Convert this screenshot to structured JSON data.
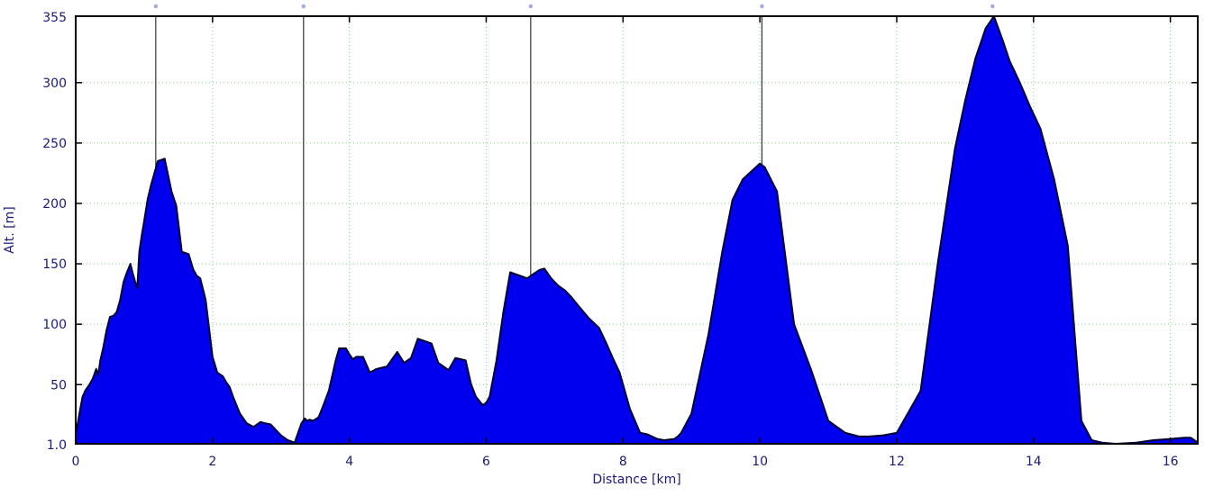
{
  "chart_data": {
    "type": "area",
    "title": "",
    "xlabel": "Distance [km]",
    "ylabel": "Alt. [m]",
    "xlim": [
      0,
      16.4
    ],
    "ylim": [
      1.0,
      355
    ],
    "x_ticks": [
      0,
      2,
      4,
      6,
      8,
      10,
      12,
      14,
      16
    ],
    "x_tick_labels": [
      "0",
      "2",
      "4",
      "6",
      "8",
      "10",
      "12",
      "14",
      "16"
    ],
    "y_ticks": [
      1.0,
      50,
      100,
      150,
      200,
      250,
      300,
      355
    ],
    "y_tick_labels": [
      "1.0",
      "50",
      "100",
      "150",
      "200",
      "250",
      "300",
      "355"
    ],
    "grid": true,
    "legend": "none",
    "fill_color": "#0000ee",
    "line_color": "#000033",
    "grid_color": "#7fd37f",
    "marker_color": "#9da8ef",
    "waypoint_markers_km": [
      1.17,
      3.33,
      6.65,
      10.03,
      13.4
    ],
    "series": [
      {
        "x": [
          0,
          0.03,
          0.06,
          0.1,
          0.14,
          0.2,
          0.25,
          0.3,
          0.33,
          0.36,
          0.4,
          0.45,
          0.5,
          0.55,
          0.6,
          0.65,
          0.7,
          0.75,
          0.8,
          0.83,
          0.87,
          0.9,
          0.93,
          0.97,
          1.0,
          1.05,
          1.1,
          1.15,
          1.2,
          1.3,
          1.4,
          1.47,
          1.55,
          1.65,
          1.72,
          1.77,
          1.82,
          1.9,
          2.0,
          2.07,
          2.15,
          2.2,
          2.25,
          2.3,
          2.35,
          2.4,
          2.5,
          2.6,
          2.7,
          2.77,
          2.85,
          3.0,
          3.05,
          3.1,
          3.2,
          3.25,
          3.3,
          3.35,
          3.38,
          3.42,
          3.47,
          3.55,
          3.6,
          3.7,
          3.8,
          3.85,
          3.95,
          4.0,
          4.05,
          4.1,
          4.2,
          4.3,
          4.4,
          4.55,
          4.7,
          4.8,
          4.9,
          5.0,
          5.1,
          5.2,
          5.3,
          5.45,
          5.55,
          5.7,
          5.78,
          5.85,
          5.95,
          6.0,
          6.05,
          6.15,
          6.25,
          6.35,
          6.5,
          6.6,
          6.7,
          6.78,
          6.85,
          6.95,
          7.05,
          7.15,
          7.25,
          7.35,
          7.5,
          7.65,
          7.75,
          7.85,
          7.95,
          8.1,
          8.25,
          8.35,
          8.5,
          8.6,
          8.75,
          8.8,
          8.85,
          9.0,
          9.25,
          9.45,
          9.6,
          9.75,
          10.0,
          10.07,
          10.25,
          10.5,
          10.75,
          11.0,
          11.25,
          11.45,
          11.6,
          11.8,
          12.0,
          12.1,
          12.35,
          12.6,
          12.85,
          13.0,
          13.15,
          13.3,
          13.42,
          13.55,
          13.65,
          13.8,
          13.95,
          14.1,
          14.3,
          14.5,
          14.7,
          14.85,
          15.0,
          15.2,
          15.5,
          15.75,
          16.0,
          16.2,
          16.3,
          16.4
        ],
        "y": [
          10,
          18,
          28,
          40,
          45,
          50,
          55,
          63,
          58,
          70,
          80,
          95,
          106,
          107,
          110,
          120,
          135,
          143,
          150,
          143,
          135,
          130,
          160,
          175,
          185,
          203,
          215,
          225,
          235,
          237,
          210,
          198,
          160,
          158,
          145,
          140,
          138,
          120,
          73,
          60,
          57,
          52,
          48,
          40,
          33,
          26,
          18,
          15,
          19,
          18,
          17,
          8,
          6,
          4,
          2,
          10,
          18,
          22,
          20,
          21,
          20,
          23,
          30,
          45,
          70,
          80,
          80,
          75,
          71,
          73,
          73,
          60,
          63,
          65,
          77,
          68,
          72,
          88,
          86,
          84,
          68,
          62,
          72,
          70,
          50,
          40,
          33,
          35,
          40,
          70,
          110,
          143,
          140,
          138,
          142,
          145,
          146,
          138,
          132,
          128,
          122,
          115,
          105,
          97,
          85,
          72,
          60,
          30,
          10,
          9,
          5,
          4,
          5,
          7,
          10,
          26,
          92,
          160,
          203,
          220,
          233,
          230,
          210,
          100,
          62,
          20,
          10,
          7,
          7,
          8,
          10,
          20,
          45,
          150,
          245,
          285,
          320,
          345,
          355,
          335,
          318,
          300,
          280,
          262,
          220,
          165,
          20,
          4,
          2,
          1,
          2,
          4,
          5,
          6,
          6,
          2
        ]
      }
    ]
  }
}
